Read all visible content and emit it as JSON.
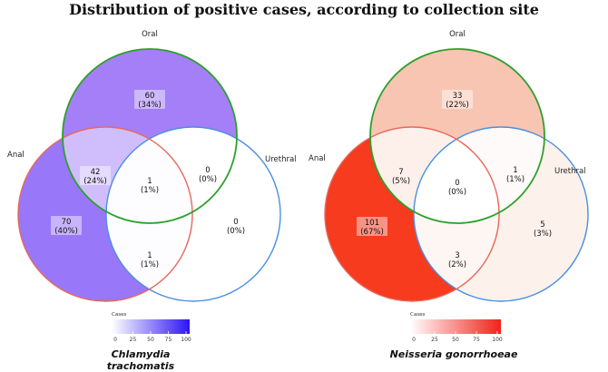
{
  "title": "Distribution of positive cases, according to collection site",
  "chart_data": [
    {
      "type": "venn",
      "caption": "Chlamydia trachomatis",
      "sets": [
        "Oral",
        "Anal",
        "Urethral"
      ],
      "regions": [
        {
          "sets": [
            "Oral"
          ],
          "count": "60",
          "pct": "(34%)",
          "color": "#a47ff8",
          "label_box": true
        },
        {
          "sets": [
            "Anal"
          ],
          "count": "70",
          "pct": "(40%)",
          "color": "#9877f9",
          "label_box": true
        },
        {
          "sets": [
            "Urethral"
          ],
          "count": "0",
          "pct": "(0%)",
          "color": "#ffffff",
          "label_box": false
        },
        {
          "sets": [
            "Oral",
            "Anal"
          ],
          "count": "42",
          "pct": "(24%)",
          "color": "#d0bdfb",
          "label_box": true
        },
        {
          "sets": [
            "Oral",
            "Urethral"
          ],
          "count": "0",
          "pct": "(0%)",
          "color": "#ffffff",
          "label_box": false
        },
        {
          "sets": [
            "Anal",
            "Urethral"
          ],
          "count": "1",
          "pct": "(1%)",
          "color": "#fdfcff",
          "label_box": false
        },
        {
          "sets": [
            "Oral",
            "Anal",
            "Urethral"
          ],
          "count": "1",
          "pct": "(1%)",
          "color": "#fdfcff",
          "label_box": false
        }
      ],
      "legend": {
        "title": "Cases",
        "ticks": [
          "0",
          "25",
          "50",
          "75",
          "100"
        ],
        "color_low": "#ffffff",
        "color_high": "#2d14f3"
      }
    },
    {
      "type": "venn",
      "caption": "Neisseria gonorrhoeae",
      "sets": [
        "Oral",
        "Anal",
        "Urethral"
      ],
      "regions": [
        {
          "sets": [
            "Oral"
          ],
          "count": "33",
          "pct": "(22%)",
          "color": "#f9c5b3",
          "label_box": true
        },
        {
          "sets": [
            "Anal"
          ],
          "count": "101",
          "pct": "(67%)",
          "color": "#f63b1f",
          "label_box": true
        },
        {
          "sets": [
            "Urethral"
          ],
          "count": "5",
          "pct": "(3%)",
          "color": "#fdf1ec",
          "label_box": false
        },
        {
          "sets": [
            "Oral",
            "Anal"
          ],
          "count": "7",
          "pct": "(5%)",
          "color": "#fdf0ea",
          "label_box": false
        },
        {
          "sets": [
            "Oral",
            "Urethral"
          ],
          "count": "1",
          "pct": "(1%)",
          "color": "#fffafa",
          "label_box": false
        },
        {
          "sets": [
            "Anal",
            "Urethral"
          ],
          "count": "3",
          "pct": "(2%)",
          "color": "#fef6f2",
          "label_box": false
        },
        {
          "sets": [
            "Oral",
            "Anal",
            "Urethral"
          ],
          "count": "0",
          "pct": "(0%)",
          "color": "#ffffff",
          "label_box": false
        }
      ],
      "legend": {
        "title": "Cases",
        "ticks": [
          "0",
          "25",
          "50",
          "75",
          "100"
        ],
        "color_low": "#ffffff",
        "color_high": "#f0221a"
      }
    }
  ],
  "colors": {
    "oral_outline": "#2ca02c",
    "anal_outline": "#e8685c",
    "urethral_outline": "#4a8fe0"
  }
}
